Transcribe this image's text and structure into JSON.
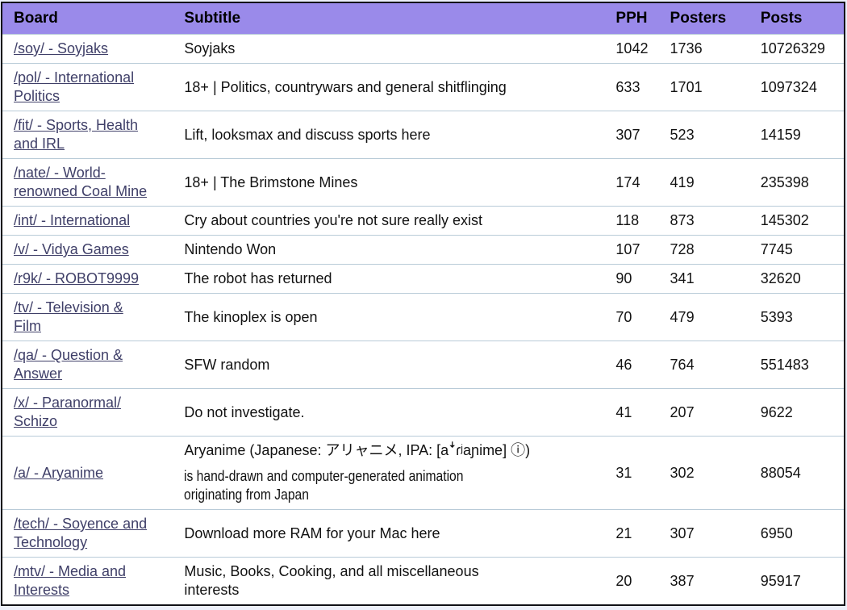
{
  "colors": {
    "header_bg": "#9a8aea",
    "header_text": "#000000",
    "link_color": "#3f3f68",
    "row_separator": "#b9cbd8",
    "outer_border": "#101016",
    "row_bg": "#ffffff",
    "body_text": "#121212"
  },
  "table": {
    "columns": [
      {
        "key": "board",
        "label": "Board"
      },
      {
        "key": "subtitle",
        "label": "Subtitle"
      },
      {
        "key": "pph",
        "label": "PPH"
      },
      {
        "key": "posters",
        "label": "Posters"
      },
      {
        "key": "posts",
        "label": "Posts"
      }
    ],
    "rows": [
      {
        "board": "/soy/ - Soyjaks",
        "subtitle": "Soyjaks",
        "pph": "1042",
        "posters": "1736",
        "posts": "10726329"
      },
      {
        "board": "/pol/ - International\nPolitics",
        "subtitle": "18+ | Politics, countrywars and general shitflinging",
        "pph": "633",
        "posters": "1701",
        "posts": "1097324"
      },
      {
        "board": "/fit/ - Sports, Health\nand IRL",
        "subtitle": "Lift, looksmax and discuss sports here",
        "pph": "307",
        "posters": "523",
        "posts": "14159"
      },
      {
        "board": "/nate/ - World-\nrenowned Coal Mine",
        "subtitle": "18+ | The Brimstone Mines",
        "pph": "174",
        "posters": "419",
        "posts": "235398"
      },
      {
        "board": "/int/ - International",
        "subtitle": "Cry about countries you're not sure really exist",
        "pph": "118",
        "posters": "873",
        "posts": "145302"
      },
      {
        "board": "/v/ - Vidya Games",
        "subtitle": "Nintendo Won",
        "pph": "107",
        "posters": "728",
        "posts": "7745"
      },
      {
        "board": "/r9k/ - ROBOT9999",
        "subtitle": "The robot has returned",
        "pph": "90",
        "posters": "341",
        "posts": "32620"
      },
      {
        "board": "/tv/ - Television &\nFilm",
        "subtitle": "The kinoplex is open",
        "pph": "70",
        "posters": "479",
        "posts": "5393"
      },
      {
        "board": "/qa/ - Question &\nAnswer",
        "subtitle": "SFW random",
        "pph": "46",
        "posters": "764",
        "posts": "551483"
      },
      {
        "board": "/x/ - Paranormal/\nSchizo",
        "subtitle": "Do not investigate.",
        "pph": "41",
        "posters": "207",
        "posts": "9622"
      },
      {
        "board": "/a/ - Aryanime",
        "subtitle": "Aryanime (Japanese: アリャニメ, IPA: [aꜜɾʲaɲime] ⓘ)",
        "subtitle_extra": "is hand-drawn and computer-generated animation\noriginating from Japan",
        "pph": "31",
        "posters": "302",
        "posts": "88054"
      },
      {
        "board": "/tech/ - Soyence and\nTechnology",
        "subtitle": "Download more RAM for your Mac here",
        "pph": "21",
        "posters": "307",
        "posts": "6950"
      },
      {
        "board": "/mtv/ - Media and\nInterests",
        "subtitle": "Music, Books, Cooking, and all miscellaneous\ninterests",
        "pph": "20",
        "posters": "387",
        "posts": "95917"
      }
    ]
  }
}
